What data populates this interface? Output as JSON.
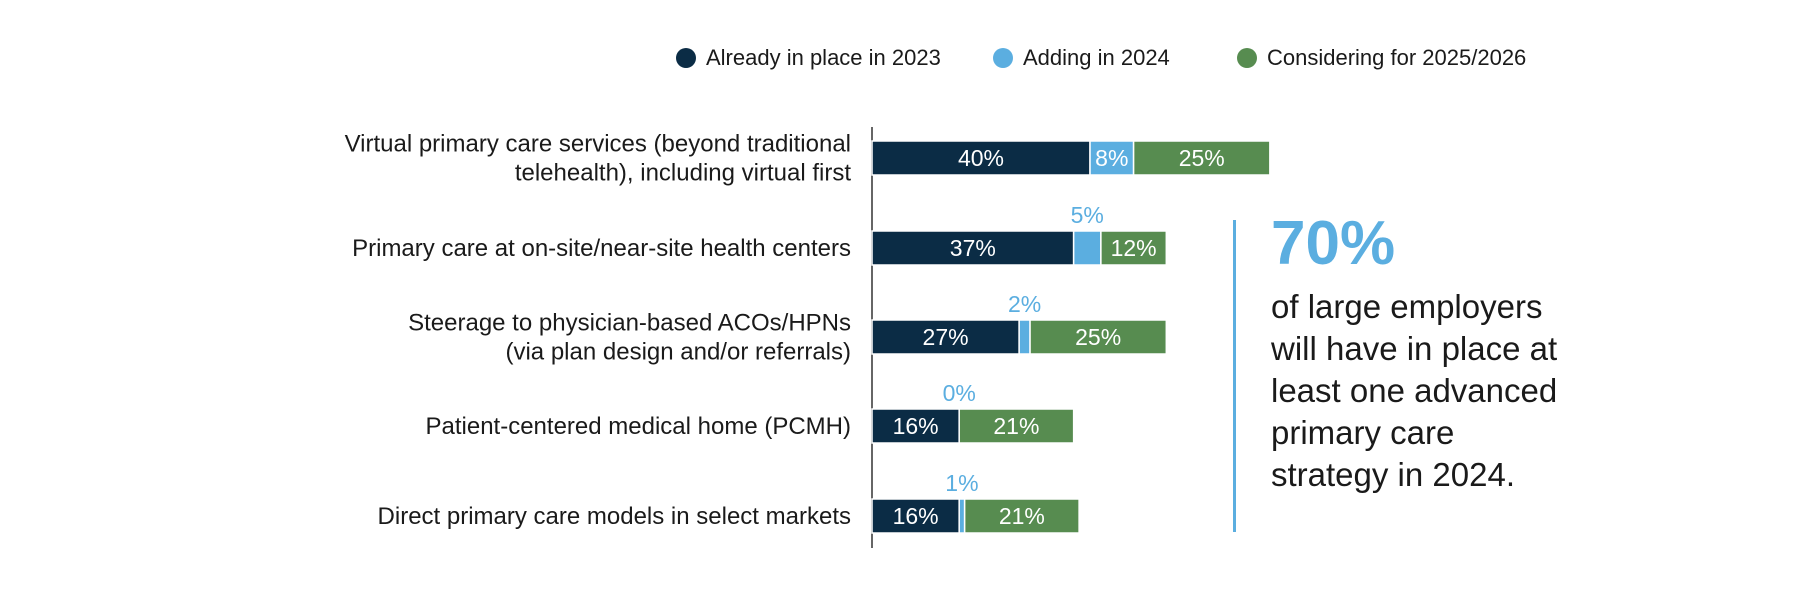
{
  "colors": {
    "already": "#0b2c45",
    "adding": "#5baee0",
    "considering": "#578c50",
    "axis": "#666666",
    "callout": "#5baee0"
  },
  "legend": [
    {
      "label": "Already in place in 2023",
      "color": "#0b2c45"
    },
    {
      "label": "Adding in 2024",
      "color": "#5baee0"
    },
    {
      "label": "Considering for 2025/2026",
      "color": "#578c50"
    }
  ],
  "chart_data": {
    "type": "bar",
    "orientation": "horizontal",
    "stacked": true,
    "categories": [
      [
        "Virtual primary care services (beyond traditional",
        "telehealth), including virtual first"
      ],
      [
        "Primary care at on-site/near-site health centers"
      ],
      [
        "Steerage to physician-based ACOs/HPNs",
        "(via plan design and/or referrals)"
      ],
      [
        "Patient-centered medical home (PCMH)"
      ],
      [
        "Direct primary care models in select markets"
      ]
    ],
    "series": [
      {
        "name": "Already in place in 2023",
        "values": [
          40,
          37,
          27,
          16,
          16
        ],
        "labels": [
          "40%",
          "37%",
          "27%",
          "16%",
          "16%"
        ]
      },
      {
        "name": "Adding in 2024",
        "values": [
          8,
          5,
          2,
          0,
          1
        ],
        "labels": [
          "8%",
          "5%",
          "2%",
          "0%",
          "1%"
        ]
      },
      {
        "name": "Considering for 2025/2026",
        "values": [
          25,
          12,
          25,
          21,
          21
        ],
        "labels": [
          "25%",
          "12%",
          "25%",
          "21%",
          "21%"
        ]
      }
    ],
    "xlim": [
      0,
      100
    ],
    "legend_position": "top",
    "grid": false
  },
  "callout": {
    "big": "70%",
    "text": "of large employers will have in place at least one advanced primary care strategy in 2024."
  }
}
